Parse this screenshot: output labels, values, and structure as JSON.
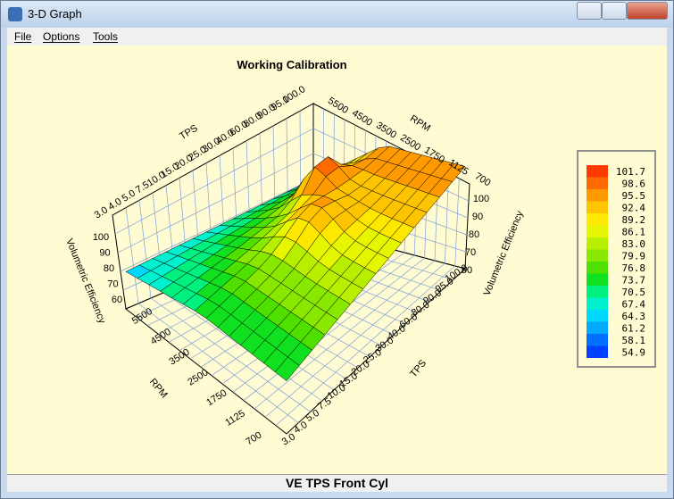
{
  "window": {
    "title": "3-D Graph"
  },
  "menu": [
    "File",
    "Options",
    "Tools"
  ],
  "plot": {
    "title": "Working Calibration",
    "tps_back_ticks": [
      "3.0",
      "4.0",
      "5.0",
      "7.5",
      "10.0",
      "15.0",
      "20.0",
      "25.0",
      "30.0",
      "40.0",
      "60.0",
      "80.0",
      "90.0",
      "95.0",
      "100.0"
    ],
    "tps_back_label": "TPS",
    "rpm_back_ticks": [
      "5500",
      "4500",
      "3500",
      "2500",
      "1750",
      "1125",
      "700"
    ],
    "rpm_back_label": "RPM",
    "ve_left_ticks": [
      "100",
      "90",
      "80",
      "70",
      "60"
    ],
    "ve_left_label": "Volumetric Efficiency",
    "ve_right_ticks": [
      "100",
      "90",
      "80",
      "70",
      "60"
    ],
    "ve_right_label": "Volumetric Efficiency",
    "rpm_front_ticks": [
      "5500",
      "4500",
      "3500",
      "2500",
      "1750",
      "1125",
      "700"
    ],
    "rpm_front_label": "RPM",
    "tps_front_ticks": [
      "100.0",
      "95.0",
      "90.0",
      "80.0",
      "60.0",
      "40.0",
      "30.0",
      "25.0",
      "20.0",
      "15.0",
      "10.0",
      "7.5",
      "5.0",
      "4.0",
      "3.0"
    ],
    "tps_front_label": "TPS"
  },
  "legend": [
    {
      "label": "101.7",
      "color": "#ff3a00"
    },
    {
      "label": "98.6",
      "color": "#ff6a00"
    },
    {
      "label": "95.5",
      "color": "#ff9a00"
    },
    {
      "label": "92.4",
      "color": "#ffc400"
    },
    {
      "label": "89.2",
      "color": "#ffe800"
    },
    {
      "label": "86.1",
      "color": "#e6f500"
    },
    {
      "label": "83.0",
      "color": "#b8ee00"
    },
    {
      "label": "79.9",
      "color": "#88e800"
    },
    {
      "label": "76.8",
      "color": "#50e000"
    },
    {
      "label": "73.7",
      "color": "#10e020"
    },
    {
      "label": "70.5",
      "color": "#00f080"
    },
    {
      "label": "67.4",
      "color": "#00f0d0"
    },
    {
      "label": "64.3",
      "color": "#00d8ff"
    },
    {
      "label": "61.2",
      "color": "#00a8ff"
    },
    {
      "label": "58.1",
      "color": "#0070ff"
    },
    {
      "label": "54.9",
      "color": "#0040ff"
    }
  ],
  "status": "VE TPS Front Cyl"
}
